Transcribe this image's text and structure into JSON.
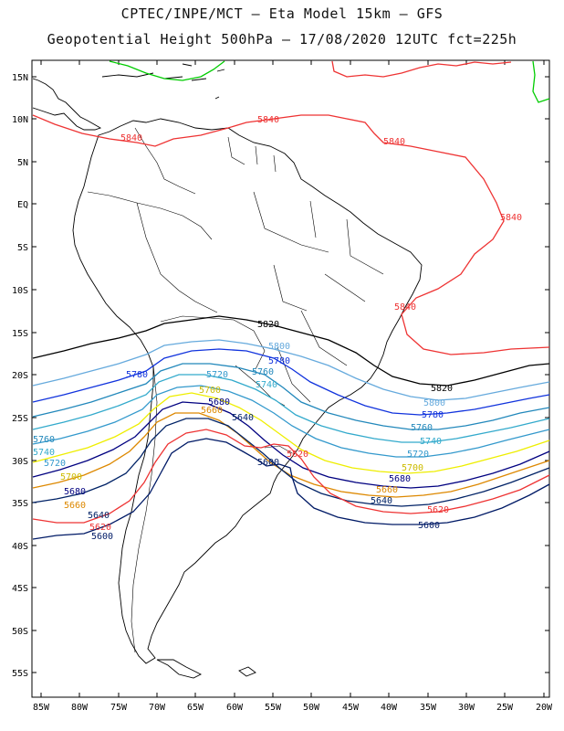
{
  "title_line1": "CPTEC/INPE/MCT – Eta Model 15km – GFS",
  "title_line2": "Geopotential Height 500hPa – 17/08/2020 12UTC fct=225h",
  "lat_ticks": [
    "15N",
    "10N",
    "5N",
    "EQ",
    "5S",
    "10S",
    "15S",
    "20S",
    "25S",
    "30S",
    "35S",
    "40S",
    "45S",
    "50S",
    "55S"
  ],
  "lon_ticks": [
    "85W",
    "80W",
    "75W",
    "70W",
    "65W",
    "60W",
    "55W",
    "50W",
    "45W",
    "40W",
    "35W",
    "30W",
    "25W",
    "20W"
  ],
  "contour_colors": {
    "5600": "#001a66",
    "5620": "#ee3333",
    "5640": "#002266",
    "5660": "#dd8800",
    "5680": "#000080",
    "5700": "#eeee00",
    "5720": "#3399cc",
    "5740": "#33aacc",
    "5760": "#2288bb",
    "5780": "#1133dd",
    "5800": "#66aadd",
    "5820": "#000000",
    "5840": "#ee3333",
    "5860": "#00cc00"
  },
  "contour_labels": [
    {
      "text": "5840",
      "color": "#ee3333"
    },
    {
      "text": "5840",
      "color": "#ee3333"
    },
    {
      "text": "5840",
      "color": "#ee3333"
    },
    {
      "text": "5840",
      "color": "#ee3333"
    },
    {
      "text": "5840",
      "color": "#ee3333"
    },
    {
      "text": "5820",
      "color": "#000000"
    },
    {
      "text": "5820",
      "color": "#000000"
    },
    {
      "text": "5800",
      "color": "#66aadd"
    },
    {
      "text": "5800",
      "color": "#66aadd"
    },
    {
      "text": "5780",
      "color": "#1133dd"
    },
    {
      "text": "5780",
      "color": "#1133dd"
    },
    {
      "text": "5780",
      "color": "#1133dd"
    },
    {
      "text": "5760",
      "color": "#2288bb"
    },
    {
      "text": "5760",
      "color": "#2288bb"
    },
    {
      "text": "5760",
      "color": "#2288bb"
    },
    {
      "text": "5740",
      "color": "#33aacc"
    },
    {
      "text": "5740",
      "color": "#33aacc"
    },
    {
      "text": "5740",
      "color": "#33aacc"
    },
    {
      "text": "5720",
      "color": "#3399cc"
    },
    {
      "text": "5720",
      "color": "#3399cc"
    },
    {
      "text": "5720",
      "color": "#3399cc"
    },
    {
      "text": "5700",
      "color": "#ccbb00"
    },
    {
      "text": "5700",
      "color": "#ccbb00"
    },
    {
      "text": "5700",
      "color": "#ccbb00"
    },
    {
      "text": "5680",
      "color": "#000080"
    },
    {
      "text": "5680",
      "color": "#000080"
    },
    {
      "text": "5680",
      "color": "#000080"
    },
    {
      "text": "5660",
      "color": "#dd8800"
    },
    {
      "text": "5660",
      "color": "#dd8800"
    },
    {
      "text": "5660",
      "color": "#dd8800"
    },
    {
      "text": "5640",
      "color": "#002266"
    },
    {
      "text": "5640",
      "color": "#002266"
    },
    {
      "text": "5640",
      "color": "#002266"
    },
    {
      "text": "5620",
      "color": "#ee3333"
    },
    {
      "text": "5620",
      "color": "#ee3333"
    },
    {
      "text": "5620",
      "color": "#ee3333"
    },
    {
      "text": "5600",
      "color": "#001a66"
    },
    {
      "text": "5600",
      "color": "#001a66"
    },
    {
      "text": "5600",
      "color": "#001a66"
    }
  ]
}
